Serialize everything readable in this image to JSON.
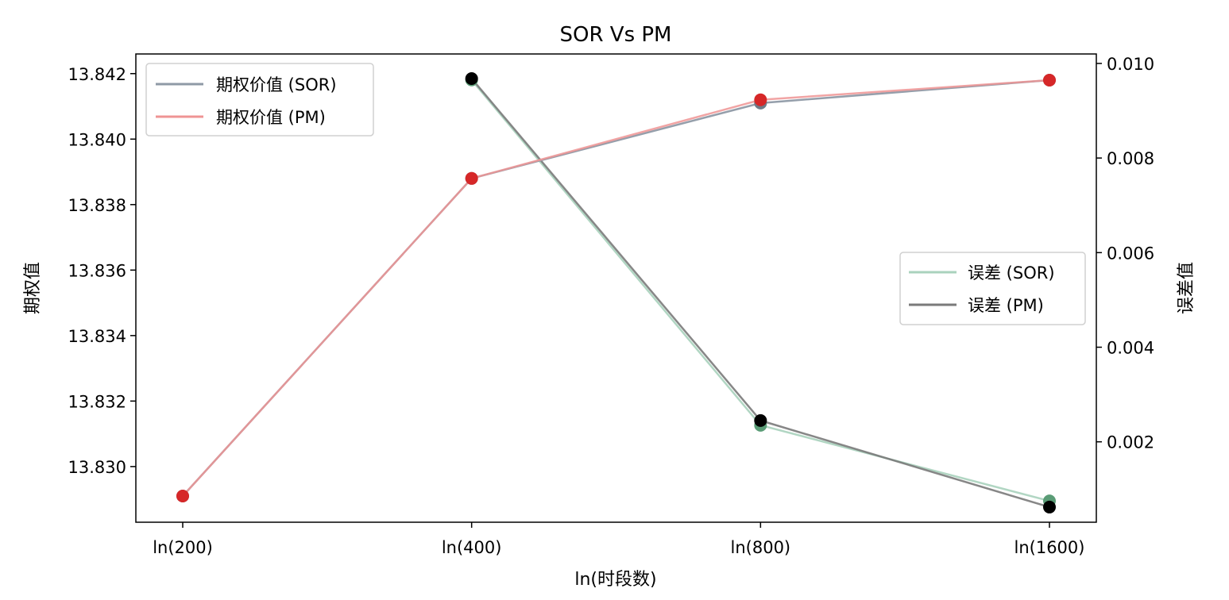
{
  "chart_data": {
    "type": "line",
    "title": "SOR Vs PM",
    "xlabel": "ln(时段数)",
    "ylabel_left": "期权值",
    "ylabel_right": "误差值",
    "categories": [
      "ln(200)",
      "ln(400)",
      "ln(800)",
      "ln(1600)"
    ],
    "left_axis": {
      "ylim": [
        13.8283,
        13.8426
      ],
      "ticks": [
        13.83,
        13.832,
        13.834,
        13.836,
        13.838,
        13.84,
        13.842
      ],
      "tick_labels": [
        "13.830",
        "13.832",
        "13.834",
        "13.836",
        "13.838",
        "13.840",
        "13.842"
      ]
    },
    "right_axis": {
      "ylim": [
        0.0003,
        0.0102
      ],
      "ticks": [
        0.002,
        0.004,
        0.006,
        0.008,
        0.01
      ],
      "tick_labels": [
        "0.002",
        "0.004",
        "0.006",
        "0.008",
        "0.010"
      ]
    },
    "series_left": [
      {
        "name": "期权价值 (SOR)",
        "values": [
          13.8291,
          13.8388,
          13.8411,
          13.8418
        ],
        "line_color": "#8f9aa6",
        "marker_color": "#6f7b88"
      },
      {
        "name": "期权价值 (PM)",
        "values": [
          13.8291,
          13.8388,
          13.8412,
          13.8418
        ],
        "line_color": "#ef9494",
        "marker_color": "#d62728"
      }
    ],
    "series_right": [
      {
        "name": "误差 (SOR)",
        "values": [
          null,
          0.00965,
          0.00235,
          0.00075
        ],
        "line_color": "#a9d2bd",
        "marker_color": "#5a9c76"
      },
      {
        "name": "误差 (PM)",
        "values": [
          null,
          0.00968,
          0.00245,
          0.00062
        ],
        "line_color": "#7a7a7a",
        "marker_color": "#000000"
      }
    ],
    "legend_left_position": "upper-left",
    "legend_right_position": "center-right",
    "grid": false
  }
}
